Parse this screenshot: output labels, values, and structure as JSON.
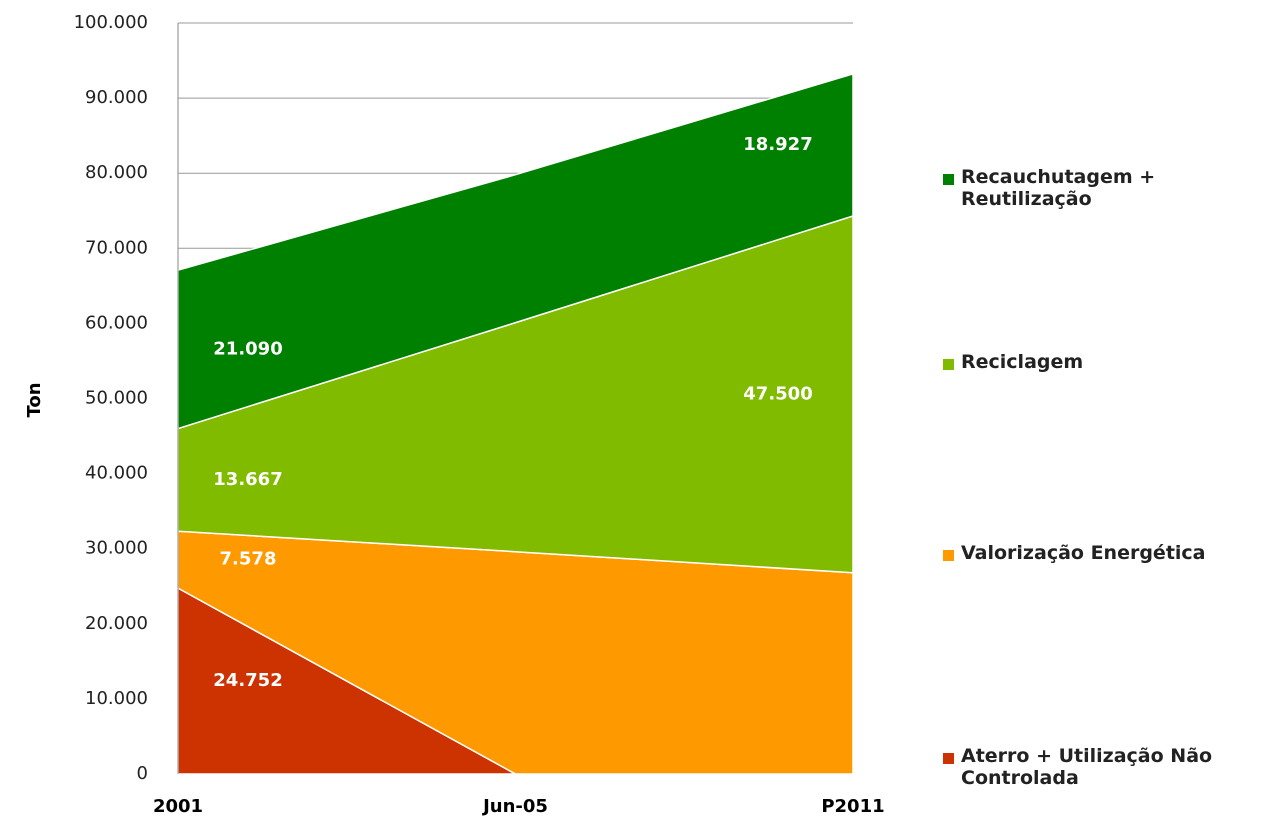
{
  "chart_data": {
    "type": "stacked-area",
    "y_label": "Ton",
    "categories": [
      "2001",
      "Jun-05",
      "P2011"
    ],
    "series": [
      {
        "name": "Aterro + Utilização Não Controlada",
        "color": "#cc3300",
        "values": [
          24752,
          0,
          0
        ],
        "value_labels": [
          "24.752",
          null,
          "0"
        ]
      },
      {
        "name": "Valorização Energética",
        "color": "#ff9900",
        "values": [
          7578,
          29600,
          26800
        ],
        "value_labels": [
          "7.578",
          null,
          null
        ]
      },
      {
        "name": "Reciclagem",
        "color": "#80bb00",
        "values": [
          13667,
          30500,
          47500
        ],
        "value_labels": [
          "13.667",
          null,
          "47.500"
        ]
      },
      {
        "name": "Recauchutagem + Reutilização",
        "color": "#008000",
        "values": [
          21090,
          19700,
          18927
        ],
        "value_labels": [
          "21.090",
          null,
          "18.927"
        ]
      }
    ],
    "ylim": [
      0,
      100000
    ],
    "yticks": [
      0,
      {
        "value": 10000,
        "label": "10.000"
      },
      {
        "value": 20000,
        "label": "20.000"
      },
      {
        "value": 30000,
        "label": "30.000"
      },
      {
        "value": 40000,
        "label": "40.000"
      },
      {
        "value": 50000,
        "label": "50.000"
      },
      {
        "value": 60000,
        "label": "60.000"
      },
      {
        "value": 70000,
        "label": "70.000"
      },
      {
        "value": 80000,
        "label": "80.000"
      },
      {
        "value": 90000,
        "label": "90.000"
      },
      {
        "value": 100000,
        "label": "100.000"
      }
    ],
    "grid": true,
    "legend": "right"
  }
}
